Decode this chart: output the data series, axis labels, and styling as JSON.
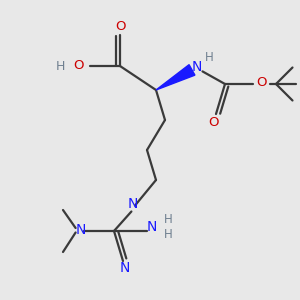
{
  "bg_color": "#e8e8e8",
  "bond_color": "#3a3a3a",
  "nitrogen_color": "#1a1aff",
  "oxygen_color": "#cc0000",
  "hydrogen_color": "#708090",
  "figsize": [
    3.0,
    3.0
  ],
  "dpi": 100,
  "xlim": [
    0,
    10
  ],
  "ylim": [
    0,
    10
  ]
}
